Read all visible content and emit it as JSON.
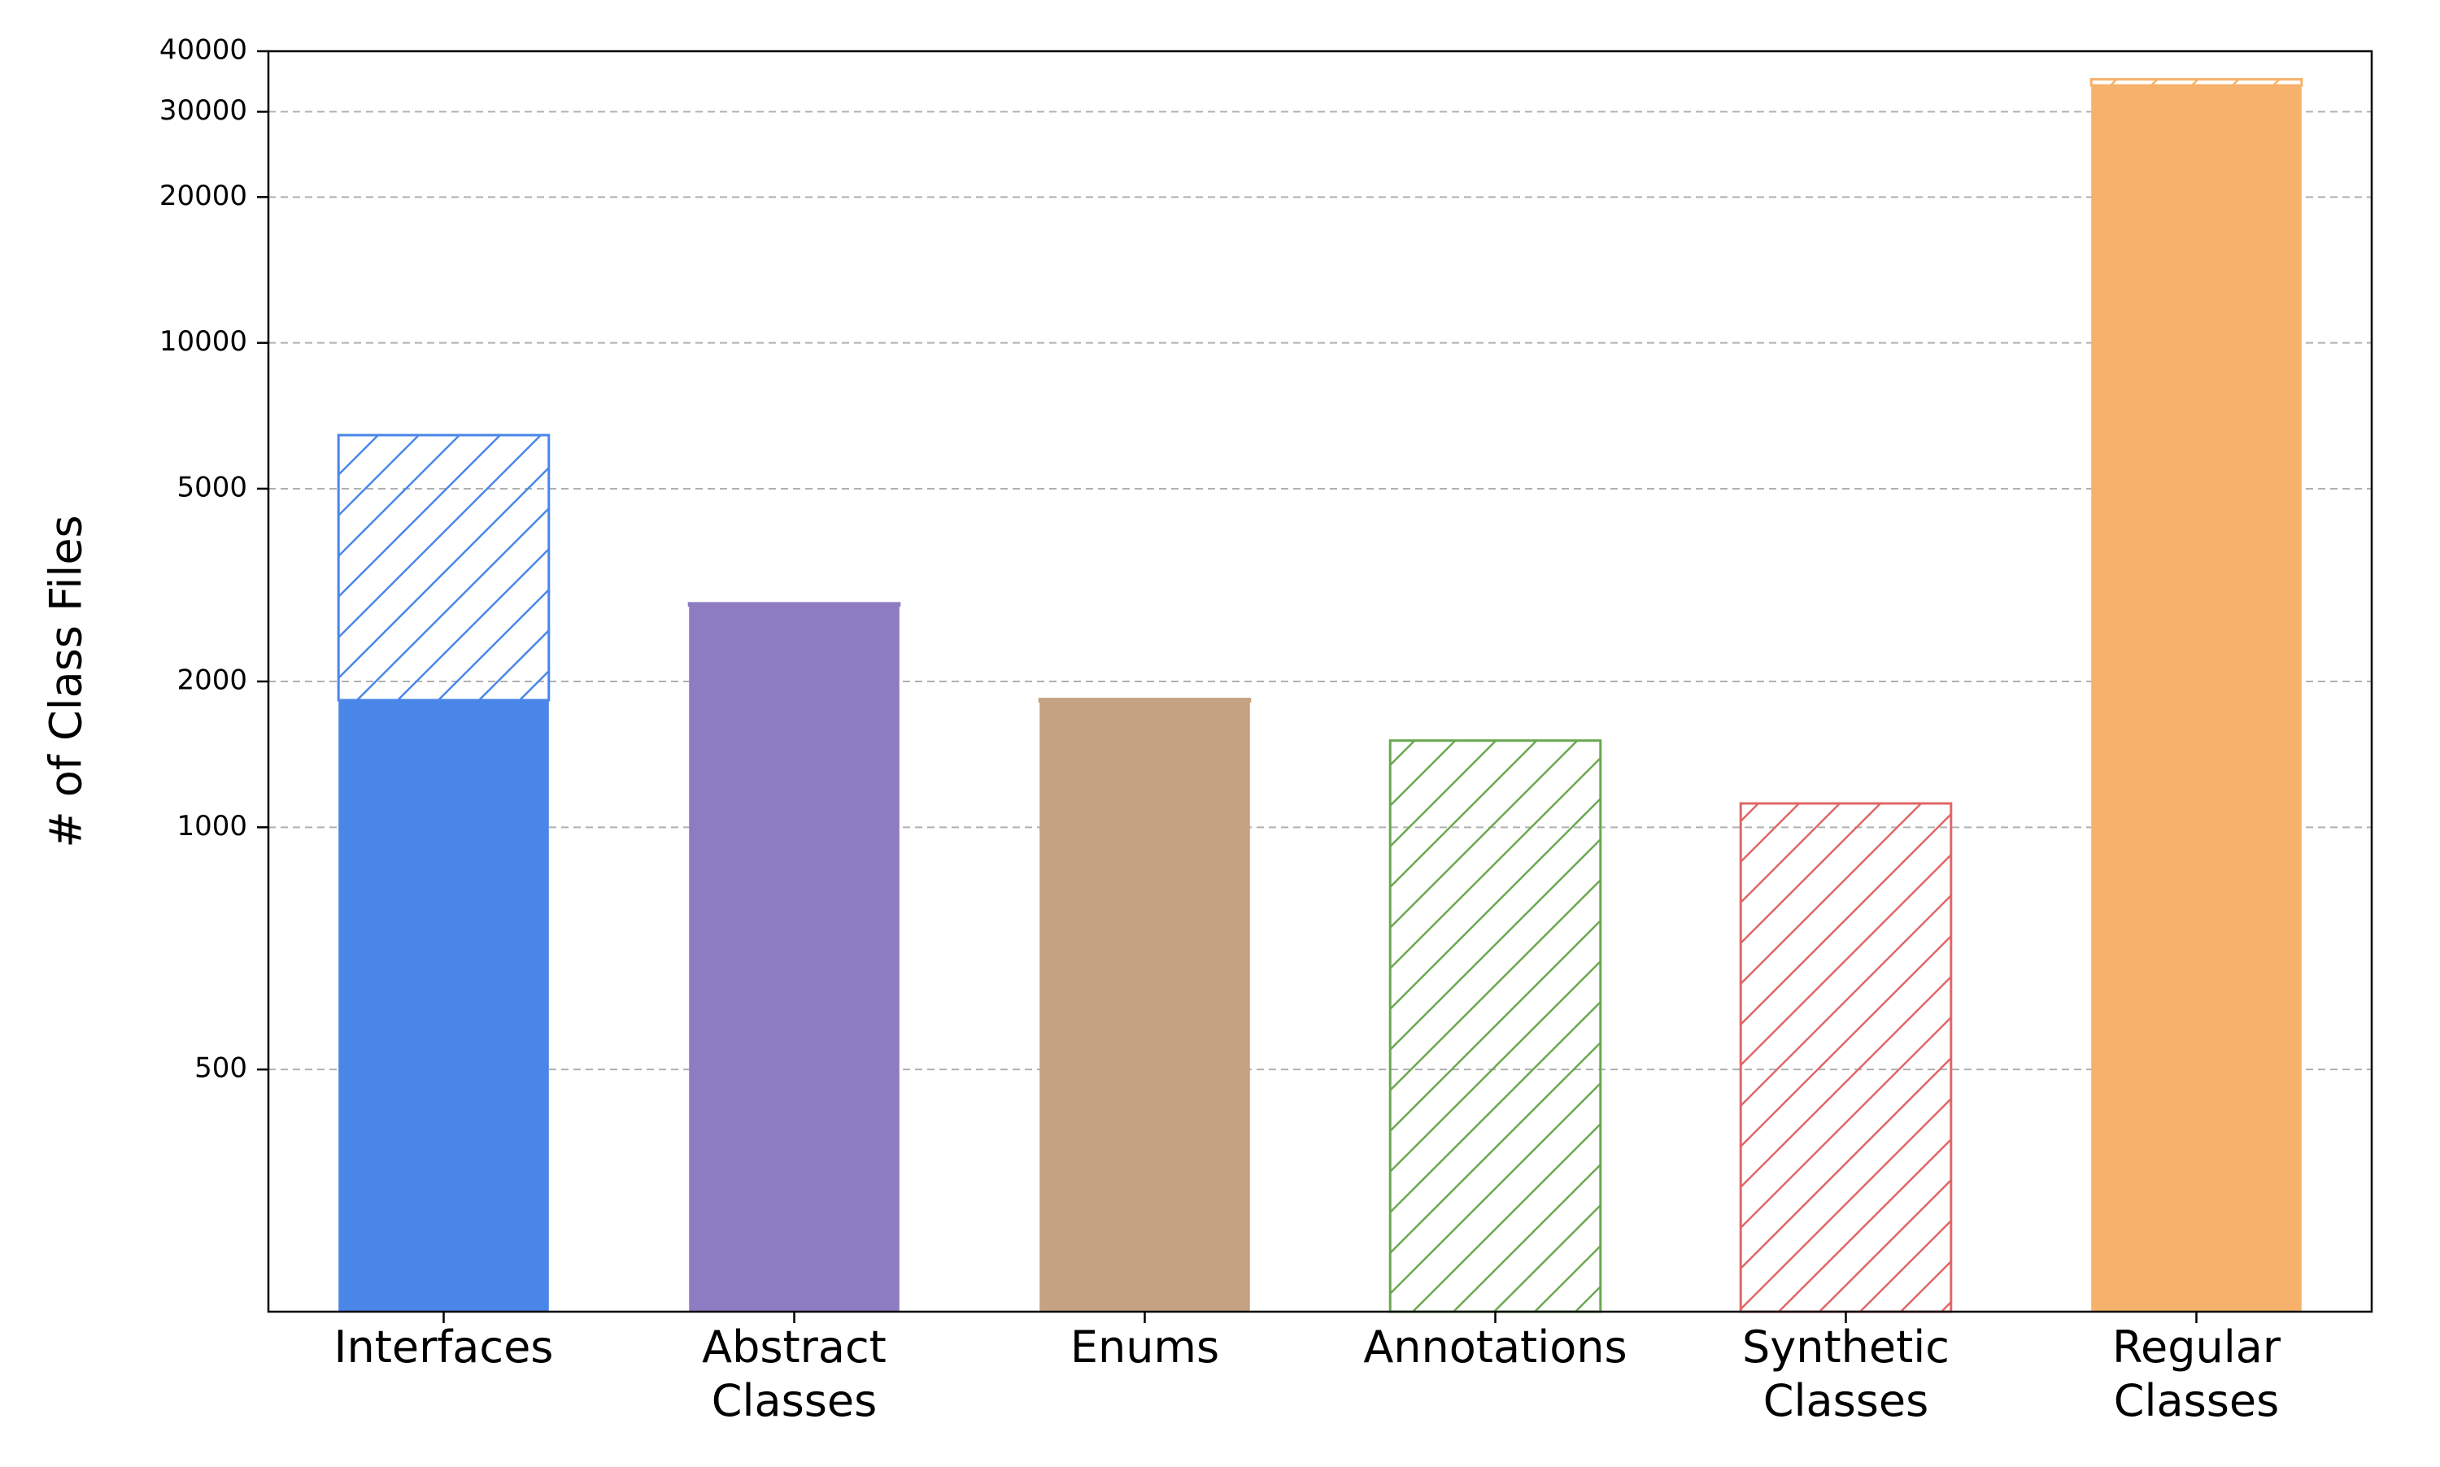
{
  "chart_data": {
    "type": "bar",
    "title": "",
    "xlabel": "",
    "ylabel": "# of Class Files",
    "y_scale": "symlog",
    "ylim": [
      0,
      40000
    ],
    "y_ticks": [
      500,
      1000,
      2000,
      5000,
      10000,
      20000,
      30000,
      40000
    ],
    "y_tick_labels": [
      "500",
      "1000",
      "2000",
      "5000",
      "10000",
      "20000",
      "30000",
      "40000"
    ],
    "grid": "y-dashed",
    "categories": [
      {
        "label_lines": [
          "Interfaces"
        ],
        "color": "#4a86e8",
        "solid": 1830,
        "hatched": 4620
      },
      {
        "label_lines": [
          "Abstract",
          "Classes"
        ],
        "color": "#8e7cc3",
        "solid": 2870,
        "hatched": 30
      },
      {
        "label_lines": [
          "Enums"
        ],
        "color": "#c4a282",
        "solid": 1820,
        "hatched": 20
      },
      {
        "label_lines": [
          "Annotations"
        ],
        "color": "#6aa84f",
        "solid": 0,
        "hatched": 1510
      },
      {
        "label_lines": [
          "Synthetic",
          "Classes"
        ],
        "color": "#e06666",
        "solid": 0,
        "hatched": 1120
      },
      {
        "label_lines": [
          "Regular",
          "Classes"
        ],
        "color": "#f6b26b",
        "solid": 34000,
        "hatched": 1000
      }
    ]
  }
}
